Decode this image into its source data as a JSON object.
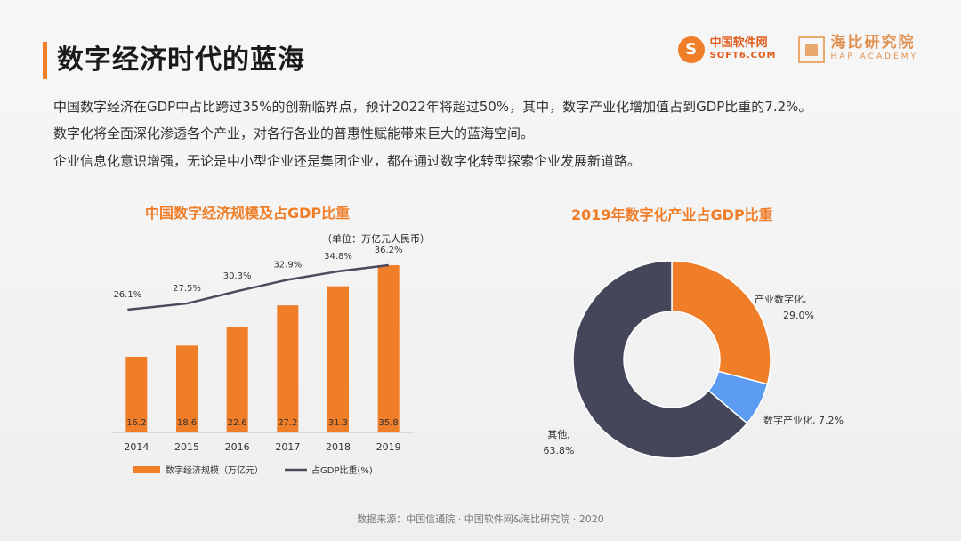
{
  "title": "数字经济时代的蓝海",
  "logos": {
    "soft_mark": "S",
    "soft_cn": "中国软件网",
    "soft_en": "SOFT6.COM",
    "hap_cn": "海比研究院",
    "hap_en": "HAP ACADEMY"
  },
  "paragraphs": [
    "中国数字经济在GDP中占比跨过35%的创新临界点，预计2022年将超过50%，其中，数字产业化增加值占到GDP比重的7.2%。",
    "数字化将全面深化渗透各个产业，对各行各业的普惠性赋能带来巨大的蓝海空间。",
    "企业信息化意识增强，无论是中小型企业还是集团企业，都在通过数字化转型探索企业发展新道路。"
  ],
  "footer": "数据来源：中国信通院 · 中国软件网&海比研究院 · 2020",
  "chart_data": [
    {
      "type": "bar",
      "title": "中国数字经济规模及占GDP比重",
      "unit_note": "（单位：万亿元人民币）",
      "categories": [
        "2014",
        "2015",
        "2016",
        "2017",
        "2018",
        "2019"
      ],
      "series": [
        {
          "name": "数字经济规模（万亿元）",
          "type": "bar",
          "color": "#f07d27",
          "values": [
            16.2,
            18.6,
            22.6,
            27.2,
            31.3,
            35.8
          ],
          "value_labels": [
            "16.2",
            "18.6",
            "22.6",
            "27.2",
            "31.3",
            "35.8"
          ]
        },
        {
          "name": "占GDP比重(%)",
          "type": "line",
          "color": "#4a4a5c",
          "values": [
            26.1,
            27.5,
            30.3,
            32.9,
            34.8,
            36.2
          ],
          "value_labels": [
            "26.1%",
            "27.5%",
            "30.3%",
            "32.9%",
            "34.8%",
            "36.2%"
          ]
        }
      ],
      "legend": "bottom",
      "grid": false
    },
    {
      "type": "pie",
      "title": "2019年数字化产业占GDP比重",
      "donut": true,
      "slices": [
        {
          "name": "产业数字化,",
          "value": 29.0,
          "value_label": "29.0%",
          "color": "#f07d27"
        },
        {
          "name": "数字产业化,",
          "value": 7.2,
          "value_label": "7.2%",
          "color": "#5b9bf0"
        },
        {
          "name": "其他,",
          "value": 63.8,
          "value_label": "63.8%",
          "color": "#44465a"
        }
      ]
    }
  ]
}
